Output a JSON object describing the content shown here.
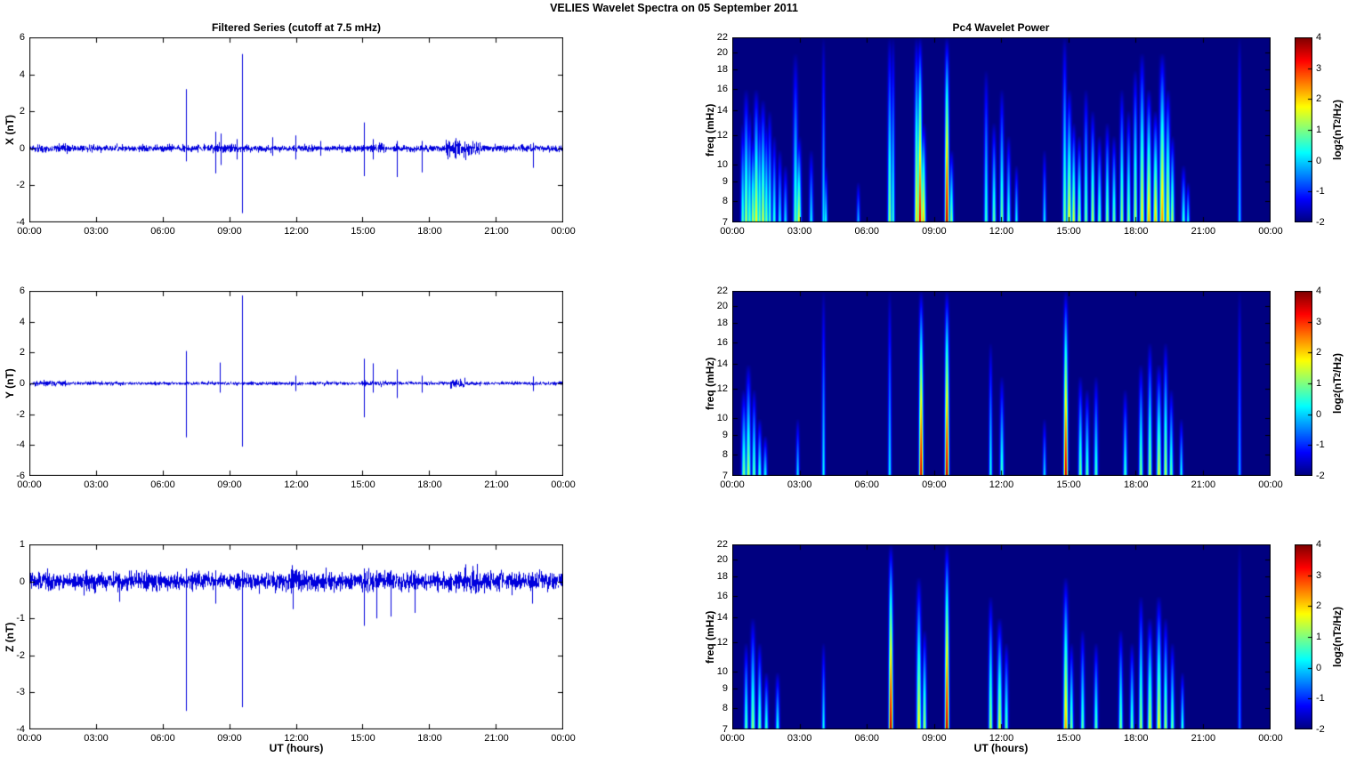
{
  "page_title": "VELIES Wavelet Spectra on 05 September 2011",
  "left_title": "Filtered Series (cutoff at 7.5 mHz)",
  "right_title": "Pc4 Wavelet Power",
  "xlabel": "UT (hours)",
  "chart_data": {
    "x_axis": {
      "range_hours": [
        0,
        24
      ],
      "tick_hours": [
        0,
        3,
        6,
        9,
        12,
        15,
        18,
        21,
        24
      ],
      "tick_labels": [
        "00:00",
        "03:00",
        "06:00",
        "09:00",
        "12:00",
        "15:00",
        "18:00",
        "21:00",
        "00:00"
      ]
    },
    "time_series": [
      {
        "type": "line",
        "name": "X filtered series",
        "ylabel": "X (nT)",
        "ylim": [
          -4,
          6
        ],
        "yticks": [
          6,
          4,
          2,
          0,
          -2,
          -4
        ],
        "line_color": "#0000dd",
        "noise_amp": 0.09,
        "seed": 11,
        "noise_bursts": [
          [
            0.2,
            1.8,
            0.11
          ],
          [
            8.0,
            9.3,
            0.12
          ],
          [
            14.9,
            16.0,
            0.11
          ],
          [
            18.7,
            20.2,
            0.22
          ],
          [
            21.0,
            21.5,
            0.1
          ]
        ],
        "spikes": [
          [
            7.05,
            3.2,
            -0.7
          ],
          [
            8.35,
            0.9,
            -1.35
          ],
          [
            8.6,
            0.8,
            -0.9
          ],
          [
            9.3,
            0.5,
            -0.6
          ],
          [
            9.55,
            5.1,
            -3.5
          ],
          [
            10.9,
            0.6,
            -0.4
          ],
          [
            11.95,
            0.7,
            -0.6
          ],
          [
            13.1,
            0.4,
            -0.4
          ],
          [
            15.05,
            1.4,
            -1.5
          ],
          [
            15.45,
            0.5,
            -0.6
          ],
          [
            16.5,
            0.4,
            -1.55
          ],
          [
            17.65,
            0.4,
            -1.3
          ],
          [
            22.65,
            0.3,
            -1.05
          ]
        ]
      },
      {
        "type": "line",
        "name": "Y filtered series",
        "ylabel": "Y (nT)",
        "ylim": [
          -6,
          6
        ],
        "yticks": [
          6,
          4,
          2,
          0,
          -2,
          -4,
          -6
        ],
        "line_color": "#0000dd",
        "noise_amp": 0.055,
        "seed": 22,
        "noise_bursts": [
          [
            0.2,
            1.6,
            0.09
          ],
          [
            14.9,
            15.8,
            0.08
          ],
          [
            18.9,
            19.6,
            0.13
          ]
        ],
        "spikes": [
          [
            7.05,
            2.1,
            -3.5
          ],
          [
            8.55,
            1.35,
            -0.6
          ],
          [
            9.55,
            5.7,
            -4.1
          ],
          [
            11.95,
            0.5,
            -0.5
          ],
          [
            15.05,
            1.6,
            -2.2
          ],
          [
            15.45,
            1.3,
            -0.6
          ],
          [
            16.5,
            0.9,
            -0.95
          ],
          [
            17.65,
            0.5,
            -0.6
          ],
          [
            22.65,
            0.45,
            -0.5
          ]
        ]
      },
      {
        "type": "line",
        "name": "Z filtered series",
        "ylabel": "Z (nT)",
        "ylim": [
          -4,
          1
        ],
        "yticks": [
          1,
          0,
          -1,
          -2,
          -3,
          -4
        ],
        "line_color": "#0000dd",
        "noise_amp": 0.12,
        "seed": 33,
        "noise_bursts": [
          [
            11.5,
            12.3,
            0.15
          ],
          [
            14.9,
            16.0,
            0.14
          ],
          [
            18.8,
            20.2,
            0.18
          ]
        ],
        "spikes": [
          [
            4.05,
            0.2,
            -0.55
          ],
          [
            7.05,
            0.35,
            -3.5
          ],
          [
            8.35,
            0.3,
            -0.6
          ],
          [
            9.55,
            0.3,
            -3.4
          ],
          [
            11.85,
            0.3,
            -0.75
          ],
          [
            15.05,
            0.35,
            -1.2
          ],
          [
            15.6,
            0.3,
            -1.0
          ],
          [
            16.25,
            0.3,
            -0.95
          ],
          [
            17.3,
            0.3,
            -0.85
          ],
          [
            22.6,
            0.25,
            -0.6
          ]
        ]
      }
    ],
    "wavelet": {
      "type": "heatmap",
      "ylabel": "freq (mHz)",
      "flim": [
        7,
        22
      ],
      "fticks": [
        22,
        20,
        18,
        16,
        14,
        12,
        10,
        9,
        8,
        7
      ],
      "power_range": [
        -2,
        4
      ],
      "background_power": -2,
      "colormap": "jet",
      "colorbar_ticks": [
        4,
        3,
        2,
        1,
        0,
        -1,
        -2
      ],
      "colorbar_label": {
        "prefix": "log",
        "sub": "2",
        "mid": "(nT",
        "sup": "2",
        "suffix": "/Hz)"
      },
      "panels": [
        {
          "name": "X wavelet power",
          "events": [
            [
              0.45,
              13,
              0.8,
              0.06
            ],
            [
              0.6,
              16,
              1.4,
              0.07
            ],
            [
              0.75,
              14,
              1.0,
              0.06
            ],
            [
              0.9,
              12,
              1.6,
              0.06
            ],
            [
              1.05,
              16,
              1.9,
              0.07
            ],
            [
              1.2,
              14,
              1.2,
              0.06
            ],
            [
              1.35,
              15,
              1.6,
              0.07
            ],
            [
              1.5,
              13,
              1.1,
              0.06
            ],
            [
              1.65,
              14,
              0.8,
              0.06
            ],
            [
              1.85,
              12,
              0.6,
              0.06
            ],
            [
              2.1,
              11,
              0.3,
              0.06
            ],
            [
              2.35,
              10,
              0.2,
              0.06
            ],
            [
              2.8,
              20,
              0.9,
              0.07
            ],
            [
              2.95,
              12,
              1.7,
              0.07
            ],
            [
              3.5,
              11,
              0.3,
              0.06
            ],
            [
              4.05,
              22,
              0.2,
              0.05
            ],
            [
              4.15,
              10,
              0.5,
              0.05
            ],
            [
              5.6,
              9,
              0.0,
              0.05
            ],
            [
              7.0,
              22,
              1.3,
              0.06
            ],
            [
              7.15,
              22,
              0.7,
              0.05
            ],
            [
              8.2,
              22,
              2.2,
              0.06
            ],
            [
              8.35,
              22,
              3.6,
              0.06
            ],
            [
              8.5,
              13,
              2.3,
              0.07
            ],
            [
              9.55,
              22,
              4.0,
              0.06
            ],
            [
              9.75,
              11,
              1.2,
              0.06
            ],
            [
              11.3,
              18,
              0.7,
              0.06
            ],
            [
              11.65,
              13,
              1.0,
              0.06
            ],
            [
              12.0,
              16,
              1.1,
              0.06
            ],
            [
              12.3,
              12,
              0.7,
              0.06
            ],
            [
              12.65,
              10,
              0.4,
              0.05
            ],
            [
              13.9,
              11,
              0.3,
              0.05
            ],
            [
              14.8,
              22,
              1.2,
              0.06
            ],
            [
              15.0,
              16,
              1.9,
              0.07
            ],
            [
              15.2,
              13,
              1.7,
              0.06
            ],
            [
              15.45,
              12,
              1.4,
              0.06
            ],
            [
              15.75,
              16,
              1.1,
              0.06
            ],
            [
              16.05,
              14,
              1.5,
              0.06
            ],
            [
              16.35,
              12,
              1.0,
              0.06
            ],
            [
              16.7,
              13,
              1.2,
              0.06
            ],
            [
              17.0,
              12,
              1.0,
              0.06
            ],
            [
              17.35,
              16,
              1.3,
              0.06
            ],
            [
              17.65,
              14,
              1.2,
              0.06
            ],
            [
              17.95,
              18,
              1.5,
              0.06
            ],
            [
              18.25,
              20,
              2.0,
              0.07
            ],
            [
              18.55,
              16,
              2.4,
              0.07
            ],
            [
              18.85,
              14,
              2.2,
              0.07
            ],
            [
              19.15,
              20,
              2.5,
              0.08
            ],
            [
              19.4,
              16,
              2.0,
              0.07
            ],
            [
              19.6,
              12,
              1.5,
              0.06
            ],
            [
              20.1,
              10,
              0.7,
              0.06
            ],
            [
              20.3,
              9,
              0.4,
              0.05
            ],
            [
              22.6,
              22,
              0.0,
              0.05
            ]
          ]
        },
        {
          "name": "Y wavelet power",
          "events": [
            [
              0.5,
              12,
              1.1,
              0.07
            ],
            [
              0.7,
              14,
              1.4,
              0.07
            ],
            [
              0.95,
              12,
              1.0,
              0.06
            ],
            [
              1.2,
              10,
              0.7,
              0.06
            ],
            [
              1.45,
              9,
              0.4,
              0.06
            ],
            [
              2.9,
              10,
              0.2,
              0.05
            ],
            [
              4.05,
              22,
              0.3,
              0.05
            ],
            [
              7.0,
              22,
              0.3,
              0.05
            ],
            [
              8.4,
              22,
              3.8,
              0.06
            ],
            [
              9.55,
              22,
              4.0,
              0.06
            ],
            [
              11.5,
              16,
              0.5,
              0.05
            ],
            [
              12.0,
              13,
              0.8,
              0.06
            ],
            [
              13.9,
              10,
              0.2,
              0.05
            ],
            [
              14.85,
              22,
              3.8,
              0.06
            ],
            [
              15.5,
              13,
              1.1,
              0.06
            ],
            [
              15.8,
              12,
              0.9,
              0.06
            ],
            [
              16.2,
              13,
              0.8,
              0.06
            ],
            [
              17.5,
              12,
              0.7,
              0.06
            ],
            [
              18.2,
              14,
              1.2,
              0.06
            ],
            [
              18.6,
              16,
              1.4,
              0.06
            ],
            [
              19.0,
              14,
              1.7,
              0.07
            ],
            [
              19.3,
              16,
              1.5,
              0.06
            ],
            [
              19.55,
              12,
              1.0,
              0.06
            ],
            [
              20.0,
              10,
              0.5,
              0.05
            ],
            [
              22.6,
              22,
              -0.2,
              0.05
            ]
          ]
        },
        {
          "name": "Z wavelet power",
          "events": [
            [
              0.6,
              12,
              0.9,
              0.06
            ],
            [
              0.9,
              14,
              1.2,
              0.07
            ],
            [
              1.2,
              12,
              1.0,
              0.06
            ],
            [
              1.5,
              10,
              0.7,
              0.06
            ],
            [
              2.0,
              10,
              0.5,
              0.06
            ],
            [
              4.05,
              12,
              0.4,
              0.05
            ],
            [
              7.05,
              22,
              4.0,
              0.06
            ],
            [
              8.3,
              18,
              2.0,
              0.07
            ],
            [
              8.55,
              13,
              1.4,
              0.06
            ],
            [
              9.55,
              22,
              4.0,
              0.06
            ],
            [
              11.5,
              16,
              1.4,
              0.06
            ],
            [
              11.9,
              14,
              1.7,
              0.07
            ],
            [
              12.2,
              12,
              0.9,
              0.06
            ],
            [
              14.85,
              18,
              2.4,
              0.07
            ],
            [
              15.1,
              12,
              1.1,
              0.06
            ],
            [
              15.6,
              13,
              0.9,
              0.06
            ],
            [
              16.2,
              12,
              0.9,
              0.06
            ],
            [
              17.3,
              13,
              1.1,
              0.06
            ],
            [
              17.8,
              12,
              0.9,
              0.06
            ],
            [
              18.2,
              16,
              1.4,
              0.06
            ],
            [
              18.6,
              14,
              1.7,
              0.07
            ],
            [
              19.0,
              16,
              1.9,
              0.07
            ],
            [
              19.3,
              14,
              1.4,
              0.06
            ],
            [
              19.6,
              12,
              1.0,
              0.06
            ],
            [
              20.05,
              10,
              0.7,
              0.05
            ],
            [
              22.6,
              22,
              -0.5,
              0.05
            ]
          ]
        }
      ]
    }
  }
}
